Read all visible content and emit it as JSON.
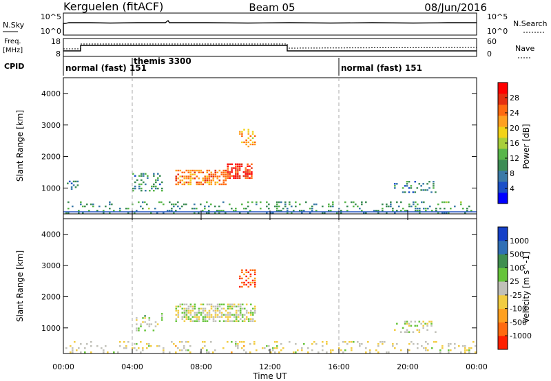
{
  "header": {
    "station": "Kerguelen (fitACF)",
    "beam": "Beam 05",
    "date": "08/Jun/2016"
  },
  "top_panels": {
    "nsky_label": "N.Sky",
    "nsky_ticks": [
      "10^5",
      "10^0"
    ],
    "nsearch_label": "N.Search",
    "nsearch_ticks": [
      "10^5",
      "10^0"
    ],
    "freq_label_1": "Freq.",
    "freq_label_2": "[MHz]",
    "freq_ticks": [
      "18",
      "8"
    ],
    "nave_label": "Nave",
    "nave_ticks": [
      "60",
      "0"
    ],
    "cpid_label": "CPID"
  },
  "modes": [
    {
      "label": "normal (fast) 151",
      "start_hour": 0
    },
    {
      "label": "themis 3300",
      "start_hour": 4
    },
    {
      "label": "normal (fast) 151",
      "start_hour": 16
    }
  ],
  "axes": {
    "xlabel": "Time UT",
    "xticks": [
      "00:00",
      "04:00",
      "08:00",
      "12:00",
      "16:00",
      "20:00",
      "00:00"
    ],
    "x_range_hours": [
      0,
      24
    ],
    "ylabel": "Slant Range [km]",
    "yticks": [
      "1000",
      "2000",
      "3000",
      "4000"
    ],
    "y_range_km": [
      180,
      4500
    ]
  },
  "power_scale": {
    "label": "Power [dB]",
    "ticks": [
      "4",
      "8",
      "12",
      "16",
      "20",
      "24",
      "28"
    ],
    "colors": [
      "#0000ff",
      "#1a4fc8",
      "#3a7aa8",
      "#3d8c55",
      "#58b64a",
      "#a8cf3a",
      "#f2d218",
      "#ffa020",
      "#ff6a10",
      "#e53010",
      "#ff0000"
    ]
  },
  "velocity_scale": {
    "label": "Velocity [m s^-1]",
    "ticks": [
      "1000",
      "500",
      "100",
      "25",
      "-25",
      "-100",
      "-500",
      "-1000"
    ],
    "colors": [
      "#1540c8",
      "#2f6fb5",
      "#3f8f4f",
      "#66c43a",
      "#c0c0b8",
      "#f2cc40",
      "#ffa020",
      "#ff6a10",
      "#ff2000"
    ]
  },
  "chart_data": [
    {
      "type": "heatmap",
      "title": "Power",
      "xlabel": "Time UT",
      "ylabel": "Slant Range [km]",
      "ylim": [
        180,
        4500
      ],
      "xlim": [
        0,
        24
      ],
      "colorbar": "Power [dB]",
      "clim": [
        0,
        30
      ],
      "regions": [
        {
          "t0": 0.0,
          "t1": 24.0,
          "r0": 200,
          "r1": 600,
          "value": 10,
          "density": 0.22
        },
        {
          "t0": 0.2,
          "t1": 0.9,
          "r0": 950,
          "r1": 1250,
          "value": 8,
          "density": 0.35
        },
        {
          "t0": 4.0,
          "t1": 5.8,
          "r0": 900,
          "r1": 1500,
          "value": 9,
          "density": 0.3
        },
        {
          "t0": 6.5,
          "t1": 9.5,
          "r0": 1100,
          "r1": 1600,
          "value": 22,
          "density": 0.6
        },
        {
          "t0": 9.5,
          "t1": 11.0,
          "r0": 1300,
          "r1": 1800,
          "value": 26,
          "density": 0.65
        },
        {
          "t0": 10.2,
          "t1": 11.2,
          "r0": 2300,
          "r1": 2900,
          "value": 20,
          "density": 0.4
        },
        {
          "t0": 19.2,
          "t1": 21.8,
          "r0": 850,
          "r1": 1250,
          "value": 8,
          "density": 0.3
        }
      ]
    },
    {
      "type": "heatmap",
      "title": "Velocity",
      "xlabel": "Time UT",
      "ylabel": "Slant Range [km]",
      "ylim": [
        180,
        4500
      ],
      "xlim": [
        0,
        24
      ],
      "colorbar": "Velocity [m s^-1]",
      "clim": [
        -1000,
        1000
      ],
      "regions": [
        {
          "t0": 0.0,
          "t1": 24.0,
          "r0": 200,
          "r1": 600,
          "value": -100,
          "density": 0.18
        },
        {
          "t0": 4.2,
          "t1": 5.8,
          "r0": 900,
          "r1": 1500,
          "value": 100,
          "density": 0.25
        },
        {
          "t0": 6.5,
          "t1": 11.2,
          "r0": 1200,
          "r1": 1800,
          "value": 0,
          "density": 0.6
        },
        {
          "t0": 10.2,
          "t1": 11.2,
          "r0": 2300,
          "r1": 2900,
          "value": -700,
          "density": 0.5
        },
        {
          "t0": 19.2,
          "t1": 21.8,
          "r0": 850,
          "r1": 1250,
          "value": 0,
          "density": 0.3
        }
      ]
    }
  ]
}
